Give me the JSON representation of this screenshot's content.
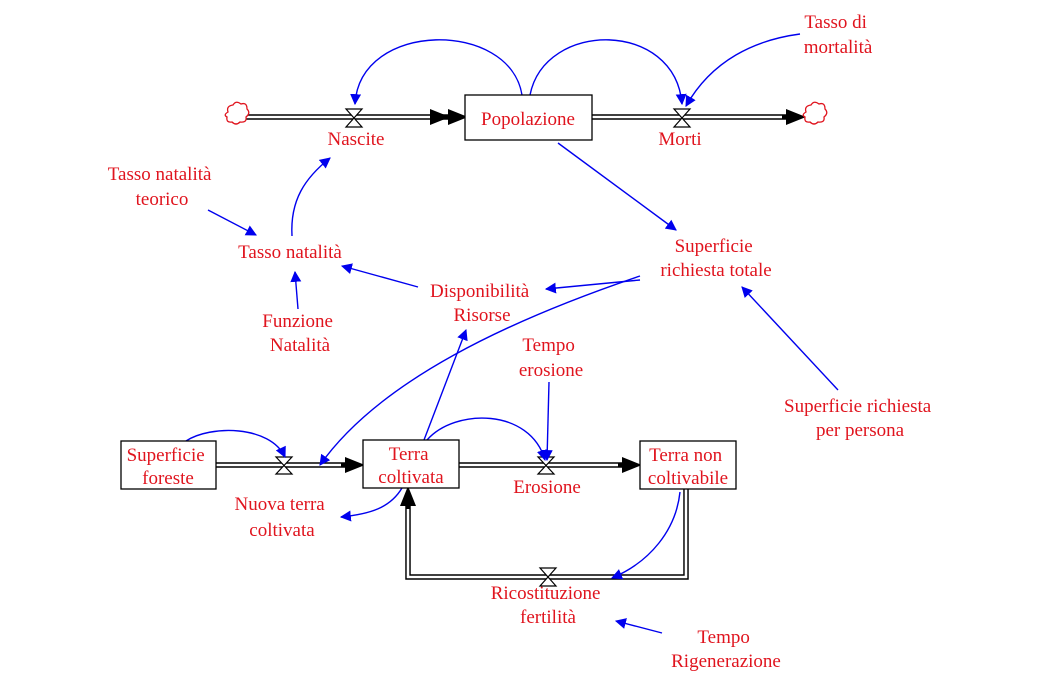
{
  "stocks": {
    "popolazione": [
      "Popolazione"
    ],
    "superficie_foreste": [
      "Superficie",
      "foreste"
    ],
    "terra_coltivata": [
      "Terra",
      "coltivata"
    ],
    "terra_non_coltivabile": [
      "Terra non",
      "coltivabile"
    ]
  },
  "flows": {
    "nascite": [
      "Nascite"
    ],
    "morti": [
      "Morti"
    ],
    "nuova_terra_coltivata": [
      "Nuova terra",
      "coltivata"
    ],
    "erosione": [
      "Erosione"
    ],
    "ricostituzione_fertilita": [
      "Ricostituzione",
      "fertilità"
    ]
  },
  "variables": {
    "tasso_mortalita": [
      "Tasso di",
      "mortalità"
    ],
    "tasso_natalita_teorico": [
      "Tasso natalità",
      "teorico"
    ],
    "tasso_natalita": [
      "Tasso natalità"
    ],
    "funzione_natalita": [
      "Funzione",
      "Natalità"
    ],
    "disponibilita_risorse": [
      "Disponibilità",
      "Risorse"
    ],
    "superficie_richiesta_totale": [
      "Superficie",
      "richiesta totale"
    ],
    "tempo_erosione": [
      "Tempo",
      "erosione"
    ],
    "superficie_richiesta_per_persona": [
      "Superficie richiesta",
      "per persona"
    ],
    "tempo_rigenerazione": [
      "Tempo",
      "Rigenerazione"
    ]
  },
  "colors": {
    "label": "#e0141e",
    "link": "#0000ee",
    "pipe": "#000000",
    "background": "#ffffff"
  }
}
